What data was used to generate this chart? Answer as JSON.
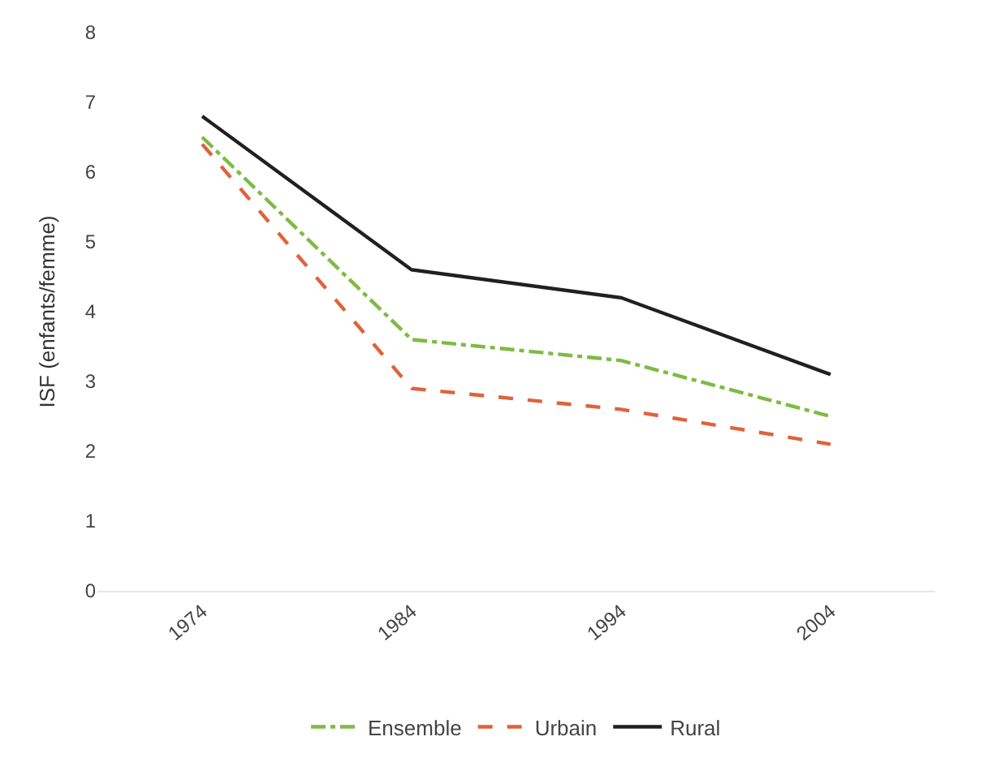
{
  "chart_data": {
    "type": "line",
    "ylabel": "ISF (enfants/femme)",
    "categories": [
      "1974",
      "1984",
      "1994",
      "2004"
    ],
    "series": [
      {
        "name": "Ensemble",
        "color": "#7dbb42",
        "line_style": "dashdot",
        "values": [
          6.5,
          3.6,
          3.3,
          2.5
        ]
      },
      {
        "name": "Urbain",
        "color": "#e0623a",
        "line_style": "dashed",
        "values": [
          6.4,
          2.9,
          2.6,
          2.1
        ]
      },
      {
        "name": "Rural",
        "color": "#231f20",
        "line_style": "solid",
        "values": [
          6.8,
          4.6,
          4.2,
          3.1
        ]
      }
    ],
    "ylim": [
      0,
      8
    ],
    "yticks": [
      0,
      1,
      2,
      3,
      4,
      5,
      6,
      7,
      8
    ],
    "legend": "bottom",
    "marker": "none"
  }
}
